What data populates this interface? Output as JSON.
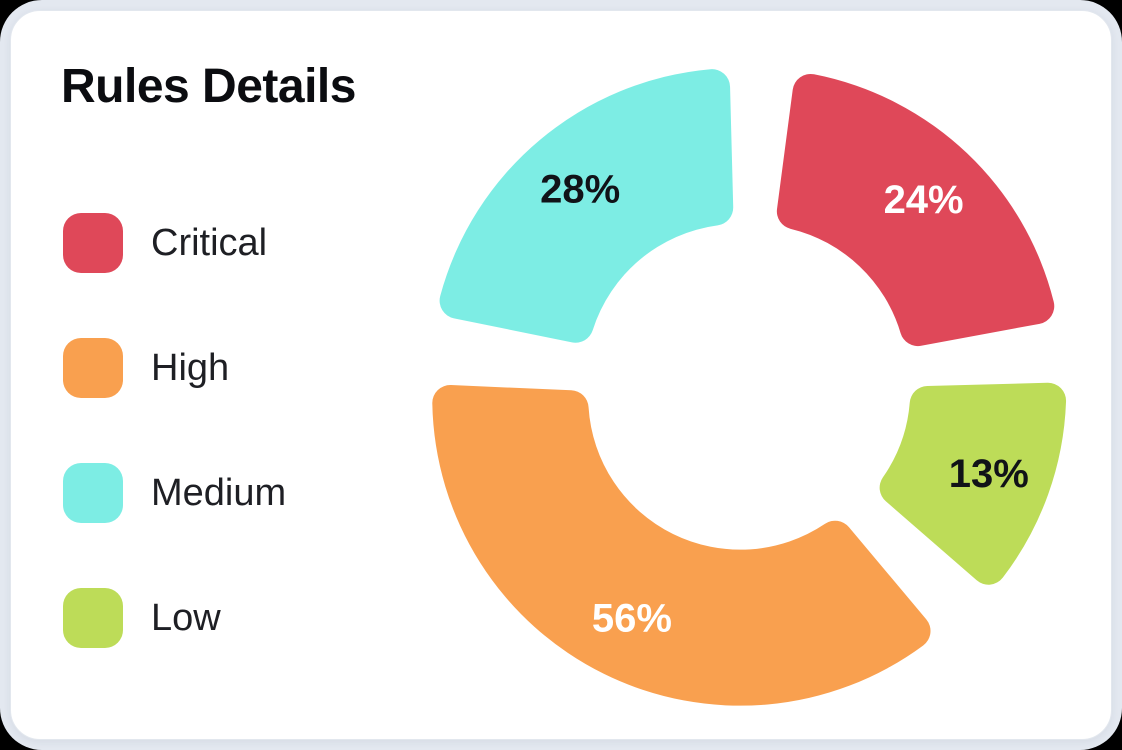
{
  "card": {
    "title": "Rules Details"
  },
  "colors": {
    "critical": "#DF4859",
    "high": "#F9A04F",
    "medium": "#7DEDE4",
    "low": "#BDDC58",
    "page_bg": "#E3E8F0",
    "card_bg": "#FFFFFF",
    "title_text": "#0B0C10",
    "legend_text": "#1E1F24"
  },
  "legend": {
    "items": [
      {
        "label": "Critical",
        "color": "#DF4859"
      },
      {
        "label": "High",
        "color": "#F9A04F"
      },
      {
        "label": "Medium",
        "color": "#7DEDE4"
      },
      {
        "label": "Low",
        "color": "#BDDC58"
      }
    ]
  },
  "chart_data": {
    "type": "pie",
    "variant": "donut-exploded-rounded",
    "title": "Rules Details",
    "unit": "%",
    "legend_position": "left",
    "categories": [
      "Critical",
      "High",
      "Medium",
      "Low"
    ],
    "values": [
      24,
      56,
      28,
      13
    ],
    "slices": [
      {
        "label": "Critical",
        "value": 24,
        "display_label": "24%",
        "color": "#DF4859",
        "text_color": "#FFFFFF",
        "start_angle": 3,
        "end_angle": 84
      },
      {
        "label": "Low",
        "value": 13,
        "display_label": "13%",
        "color": "#BDDC58",
        "text_color": "#111318",
        "start_angle": 84,
        "end_angle": 135.5
      },
      {
        "label": "High",
        "value": 56,
        "display_label": "56%",
        "color": "#F9A04F",
        "text_color": "#FFFFFF",
        "start_angle": 135.5,
        "end_angle": 277
      },
      {
        "label": "Medium",
        "value": 28,
        "display_label": "28%",
        "color": "#7DEDE4",
        "text_color": "#111318",
        "start_angle": 277,
        "end_angle": 363
      }
    ]
  }
}
